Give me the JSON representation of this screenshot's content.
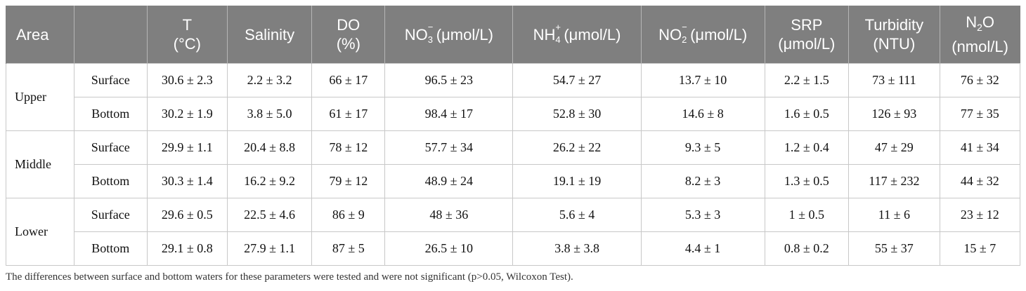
{
  "headers": {
    "area": "Area",
    "blank": "",
    "t_top": "T",
    "t_bottom": "(°C)",
    "salinity": "Salinity",
    "do_top": "DO",
    "do_bottom": "(%)",
    "no3_base": "NO",
    "no3_sub": "3",
    "no3_sup": "−",
    "no3_unit": "(μmol/L)",
    "nh4_base": "NH",
    "nh4_sub": "4",
    "nh4_sup": "+",
    "nh4_unit": "(μmol/L)",
    "no2_base": "NO",
    "no2_sub": "2",
    "no2_sup": "−",
    "no2_unit": "(μmol/L)",
    "srp_top": "SRP",
    "srp_bottom": "(μmol/L)",
    "turb_top": "Turbidity",
    "turb_bottom": "(NTU)",
    "n2o_base": "N",
    "n2o_sub": "2",
    "n2o_tail": "O",
    "n2o_bottom": "(nmol/L)"
  },
  "areas": [
    "Upper",
    "Middle",
    "Lower"
  ],
  "rows": [
    [
      "Surface",
      "30.6 ± 2.3",
      "2.2 ± 3.2",
      "66 ± 17",
      "96.5 ± 23",
      "54.7 ± 27",
      "13.7 ± 10",
      "2.2 ± 1.5",
      "73 ± 111",
      "76 ± 32"
    ],
    [
      "Bottom",
      "30.2 ± 1.9",
      "3.8 ± 5.0",
      "61 ± 17",
      "98.4 ± 17",
      "52.8 ± 30",
      "14.6 ± 8",
      "1.6 ± 0.5",
      "126 ± 93",
      "77 ± 35"
    ],
    [
      "Surface",
      "29.9 ± 1.1",
      "20.4 ± 8.8",
      "78 ± 12",
      "57.7 ± 34",
      "26.2 ± 22",
      "9.3 ± 5",
      "1.2 ± 0.4",
      "47 ± 29",
      "41 ± 34"
    ],
    [
      "Bottom",
      "30.3 ± 1.4",
      "16.2 ± 9.2",
      "79 ± 12",
      "48.9 ± 24",
      "19.1 ± 19",
      "8.2 ± 3",
      "1.3 ± 0.5",
      "117 ± 232",
      "44 ± 32"
    ],
    [
      "Surface",
      "29.6 ± 0.5",
      "22.5 ± 4.6",
      "86 ± 9",
      "48 ± 36",
      "5.6 ± 4",
      "5.3 ± 3",
      "1 ± 0.5",
      "11 ± 6",
      "23 ± 12"
    ],
    [
      "Bottom",
      "29.1 ± 0.8",
      "27.9 ± 1.1",
      "87 ± 5",
      "26.5 ± 10",
      "3.8 ± 3.8",
      "4.4 ± 1",
      "0.8 ± 0.2",
      "55 ± 37",
      "15 ± 7"
    ]
  ],
  "footnote": "The differences between surface and bottom waters for these parameters were tested and were not significant (p>0.05, Wilcoxon Test)."
}
